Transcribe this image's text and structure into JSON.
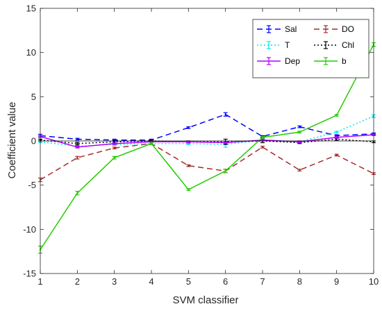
{
  "chart_data": {
    "type": "line",
    "title": "",
    "xlabel": "SVM classifier",
    "ylabel": "Coefficient value",
    "xlim": [
      1,
      10
    ],
    "ylim": [
      -15,
      15
    ],
    "x": [
      1,
      2,
      3,
      4,
      5,
      6,
      7,
      8,
      9,
      10
    ],
    "x_ticks": [
      "1",
      "2",
      "3",
      "4",
      "5",
      "6",
      "7",
      "8",
      "9",
      "10"
    ],
    "y_ticks": [
      "-15",
      "-10",
      "-5",
      "0",
      "5",
      "10",
      "15"
    ],
    "y_tick_values": [
      -15,
      -10,
      -5,
      0,
      5,
      10,
      15
    ],
    "legend_position": "top-right",
    "grid": false,
    "series": [
      {
        "name": "Sal",
        "color": "#0000ff",
        "style": "dashed",
        "values": [
          0.6,
          0.2,
          0.1,
          0.1,
          1.5,
          3.0,
          0.5,
          1.6,
          0.6,
          0.8
        ],
        "errors": [
          0.15,
          0.1,
          0.1,
          0.1,
          0.1,
          0.2,
          0.1,
          0.1,
          0.1,
          0.1
        ]
      },
      {
        "name": "DO",
        "color": "#a52a2a",
        "style": "dashed",
        "values": [
          -4.4,
          -1.9,
          -0.8,
          -0.3,
          -2.8,
          -3.4,
          -0.7,
          -3.3,
          -1.6,
          -3.7
        ],
        "errors": [
          0.2,
          0.15,
          0.1,
          0.1,
          0.1,
          0.2,
          0.1,
          0.1,
          0.1,
          0.1
        ]
      },
      {
        "name": "T",
        "color": "#00e5ee",
        "style": "dotted",
        "values": [
          -0.1,
          -0.6,
          -0.4,
          -0.3,
          -0.3,
          -0.4,
          0.1,
          -0.1,
          1.0,
          2.8
        ],
        "errors": [
          0.1,
          0.1,
          0.1,
          0.1,
          0.1,
          0.3,
          0.1,
          0.1,
          0.1,
          0.15
        ]
      },
      {
        "name": "Chl",
        "color": "#000000",
        "style": "dotted",
        "values": [
          0.1,
          -0.3,
          -0.1,
          0.0,
          -0.1,
          -0.1,
          0.0,
          -0.2,
          0.2,
          -0.1
        ],
        "errors": [
          0.1,
          0.15,
          0.1,
          0.1,
          0.1,
          0.3,
          0.2,
          0.1,
          0.15,
          0.1
        ]
      },
      {
        "name": "Dep",
        "color": "#b000ff",
        "style": "solid",
        "values": [
          0.5,
          -0.7,
          -0.3,
          -0.1,
          -0.1,
          -0.2,
          0.1,
          -0.1,
          0.4,
          0.7
        ],
        "errors": [
          0.1,
          0.1,
          0.1,
          0.1,
          0.1,
          0.1,
          0.1,
          0.1,
          0.1,
          0.1
        ]
      },
      {
        "name": "b",
        "color": "#22cc00",
        "style": "solid",
        "values": [
          -12.3,
          -5.9,
          -1.9,
          -0.3,
          -5.5,
          -3.4,
          0.4,
          1.0,
          2.9,
          10.9
        ],
        "errors": [
          0.4,
          0.2,
          0.15,
          0.1,
          0.1,
          0.2,
          0.1,
          0.1,
          0.1,
          0.2
        ]
      }
    ],
    "legend_order": [
      "Sal",
      "DO",
      "T",
      "Chl",
      "Dep",
      "b"
    ]
  }
}
